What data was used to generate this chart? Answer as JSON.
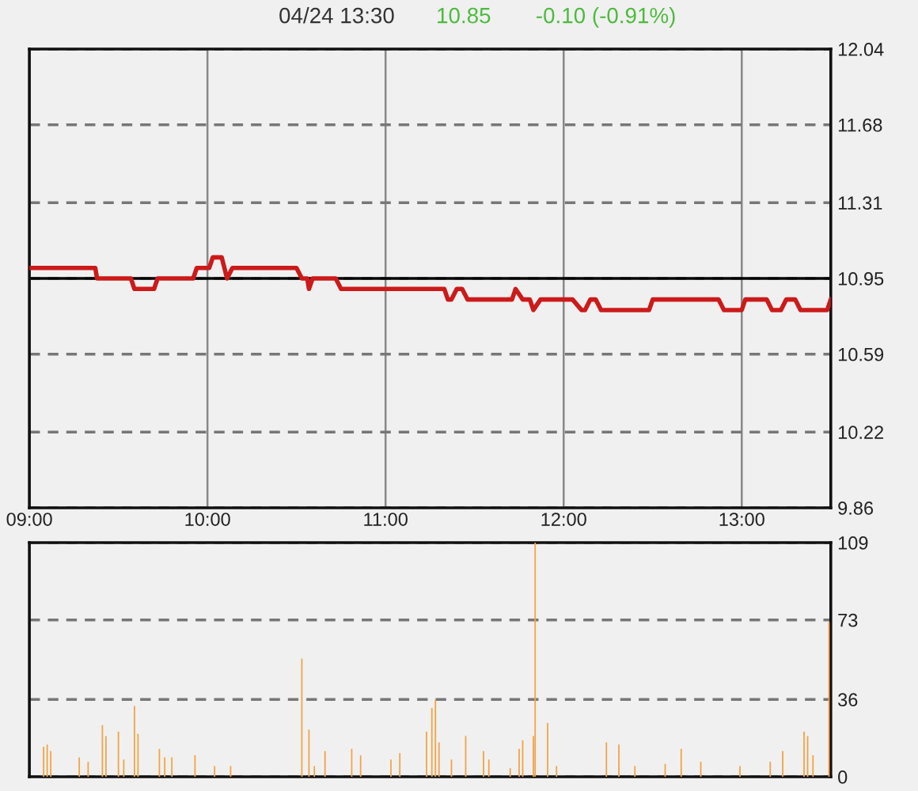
{
  "chart_data": [
    {
      "type": "line",
      "title": "04/24 13:30",
      "annotations": [
        "10.85",
        "-0.10 (-0.91%)"
      ],
      "x": [
        9.0,
        9.37,
        9.38,
        9.57,
        9.59,
        9.7,
        9.72,
        9.92,
        9.94,
        10.01,
        10.03,
        10.08,
        10.11,
        10.14,
        10.5,
        10.53,
        10.56,
        10.57,
        10.59,
        10.72,
        10.75,
        11.33,
        11.35,
        11.37,
        11.4,
        11.43,
        11.46,
        11.71,
        11.73,
        11.77,
        11.81,
        11.83,
        11.87,
        12.05,
        12.1,
        12.12,
        12.15,
        12.18,
        12.21,
        12.48,
        12.5,
        12.87,
        12.9,
        13.0,
        13.02,
        13.14,
        13.17,
        13.22,
        13.25,
        13.3,
        13.33,
        13.48,
        13.5
      ],
      "series": [
        {
          "color": "#cc1a1a",
          "values": [
            11.0,
            11.0,
            10.95,
            10.95,
            10.9,
            10.9,
            10.95,
            10.95,
            11.0,
            11.0,
            11.05,
            11.05,
            10.95,
            11.0,
            11.0,
            10.95,
            10.95,
            10.9,
            10.95,
            10.95,
            10.9,
            10.9,
            10.85,
            10.85,
            10.9,
            10.9,
            10.85,
            10.85,
            10.9,
            10.85,
            10.85,
            10.8,
            10.85,
            10.85,
            10.8,
            10.8,
            10.85,
            10.85,
            10.8,
            10.8,
            10.85,
            10.85,
            10.8,
            10.8,
            10.85,
            10.85,
            10.8,
            10.8,
            10.85,
            10.85,
            10.8,
            10.8,
            10.85
          ]
        }
      ],
      "xlim": [
        9.0,
        13.5
      ],
      "xticks": [
        {
          "value": 9,
          "label": "09:00"
        },
        {
          "value": 10,
          "label": "10:00"
        },
        {
          "value": 11,
          "label": "11:00"
        },
        {
          "value": 12,
          "label": "12:00"
        },
        {
          "value": 13,
          "label": "13:00"
        }
      ],
      "ylim": [
        9.86,
        12.04
      ],
      "yticks": [
        9.86,
        10.22,
        10.59,
        10.95,
        11.31,
        11.68,
        12.04
      ],
      "ref_lines": [
        {
          "axis": "y",
          "value": 10.95,
          "color": "#000000"
        }
      ],
      "grid": true,
      "legend": false
    },
    {
      "type": "bar",
      "x": [
        9.08,
        9.1,
        9.12,
        9.28,
        9.33,
        9.41,
        9.43,
        9.5,
        9.53,
        9.59,
        9.61,
        9.73,
        9.76,
        9.8,
        9.93,
        10.04,
        10.13,
        10.53,
        10.57,
        10.6,
        10.66,
        10.81,
        10.86,
        11.03,
        11.08,
        11.23,
        11.26,
        11.28,
        11.3,
        11.37,
        11.45,
        11.55,
        11.58,
        11.7,
        11.75,
        11.77,
        11.83,
        11.84,
        11.91,
        11.96,
        12.24,
        12.31,
        12.4,
        12.57,
        12.66,
        12.77,
        12.99,
        13.16,
        13.23,
        13.35,
        13.37,
        13.4,
        13.49
      ],
      "series": [
        {
          "color": "#f2a446",
          "values": [
            14,
            15,
            12,
            9,
            7,
            24,
            19,
            21,
            8,
            33,
            20,
            13,
            9,
            9,
            10,
            5,
            5,
            55,
            22,
            5,
            12,
            13,
            10,
            8,
            11,
            21,
            32,
            36,
            16,
            8,
            19,
            12,
            8,
            4,
            13,
            17,
            19,
            109,
            25,
            5,
            16,
            15,
            5,
            6,
            13,
            7,
            5,
            7,
            12,
            21,
            19,
            10,
            72
          ]
        }
      ],
      "xlim": [
        9.0,
        13.5
      ],
      "ylim": [
        0,
        109
      ],
      "yticks": [
        0,
        36,
        73,
        109
      ],
      "tick_labels": "y",
      "grid": "y",
      "legend": false
    }
  ]
}
